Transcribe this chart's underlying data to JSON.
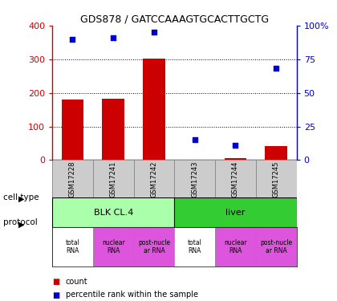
{
  "title": "GDS878 / GATCCAAAGTGCACTTGCTG",
  "samples": [
    "GSM17228",
    "GSM17241",
    "GSM17242",
    "GSM17243",
    "GSM17244",
    "GSM17245"
  ],
  "counts": [
    180,
    182,
    302,
    2,
    5,
    42
  ],
  "percentiles": [
    90,
    91,
    95,
    15,
    11,
    68
  ],
  "left_ylim": [
    0,
    400
  ],
  "right_ylim": [
    0,
    100
  ],
  "left_yticks": [
    0,
    100,
    200,
    300,
    400
  ],
  "right_yticks": [
    0,
    25,
    50,
    75,
    100
  ],
  "right_yticklabels": [
    "0",
    "25",
    "50",
    "75",
    "100%"
  ],
  "bar_color": "#cc0000",
  "scatter_color": "#0000cc",
  "gsm_bg": "#cccccc",
  "cell_types": [
    {
      "label": "BLK CL.4",
      "span": [
        0,
        3
      ],
      "color": "#aaffaa"
    },
    {
      "label": "liver",
      "span": [
        3,
        6
      ],
      "color": "#33cc33"
    }
  ],
  "protocols": [
    {
      "label": "total\nRNA",
      "color": "#ffffff"
    },
    {
      "label": "nuclear\nRNA",
      "color": "#dd55dd"
    },
    {
      "label": "post-nucle\nar RNA",
      "color": "#dd55dd"
    },
    {
      "label": "total\nRNA",
      "color": "#ffffff"
    },
    {
      "label": "nuclear\nRNA",
      "color": "#dd55dd"
    },
    {
      "label": "post-nucle\nar RNA",
      "color": "#dd55dd"
    }
  ],
  "background_color": "#ffffff",
  "label_color_left": "#cc0000",
  "label_color_right": "#0000cc"
}
